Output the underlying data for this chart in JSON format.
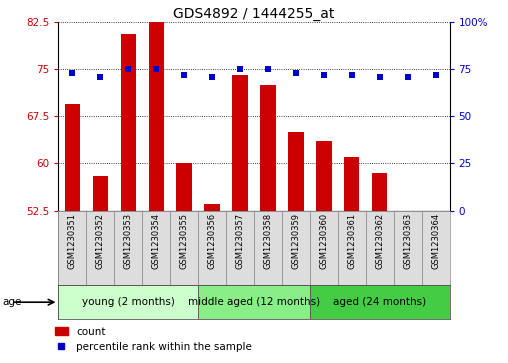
{
  "title": "GDS4892 / 1444255_at",
  "samples": [
    "GSM1230351",
    "GSM1230352",
    "GSM1230353",
    "GSM1230354",
    "GSM1230355",
    "GSM1230356",
    "GSM1230357",
    "GSM1230358",
    "GSM1230359",
    "GSM1230360",
    "GSM1230361",
    "GSM1230362",
    "GSM1230363",
    "GSM1230364"
  ],
  "counts": [
    69.5,
    58.0,
    80.5,
    83.5,
    60.0,
    53.5,
    74.0,
    72.5,
    65.0,
    63.5,
    61.0,
    58.5,
    52.5,
    52.5
  ],
  "percentile_ranks": [
    73,
    71,
    75,
    75,
    72,
    71,
    75,
    75,
    73,
    72,
    72,
    71,
    71,
    72
  ],
  "bar_color": "#cc0000",
  "dot_color": "#0000cc",
  "ylim_left": [
    52.5,
    82.5
  ],
  "ylim_right": [
    0,
    100
  ],
  "yticks_left": [
    52.5,
    60.0,
    67.5,
    75.0,
    82.5
  ],
  "yticks_right": [
    0,
    25,
    50,
    75,
    100
  ],
  "ytick_labels_left": [
    "52.5",
    "60",
    "67.5",
    "75",
    "82.5"
  ],
  "ytick_labels_right": [
    "0",
    "25",
    "50",
    "75",
    "100%"
  ],
  "groups": [
    {
      "label": "young (2 months)",
      "start": 0,
      "end": 5,
      "color": "#ccffcc"
    },
    {
      "label": "middle aged (12 months)",
      "start": 5,
      "end": 9,
      "color": "#88ee88"
    },
    {
      "label": "aged (24 months)",
      "start": 9,
      "end": 14,
      "color": "#44cc44"
    }
  ],
  "age_label": "age",
  "legend_count_label": "count",
  "legend_percentile_label": "percentile rank within the sample",
  "bg_color": "#ffffff",
  "tick_label_color_left": "#cc0000",
  "tick_label_color_right": "#0000cc",
  "title_fontsize": 10,
  "tick_fontsize": 7.5,
  "sample_fontsize": 6.0,
  "group_label_fontsize": 7.5,
  "legend_fontsize": 7.5
}
